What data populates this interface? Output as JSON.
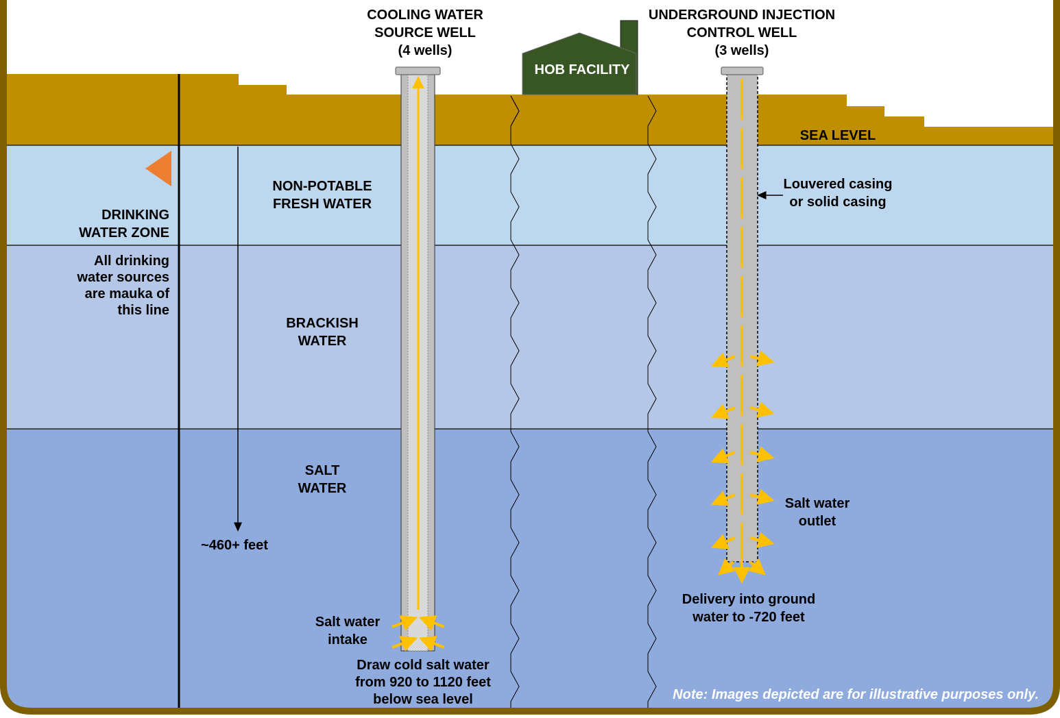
{
  "cooling_well": {
    "title": [
      "COOLING WATER",
      "SOURCE WELL"
    ],
    "count": "(4 wells)",
    "intake": [
      "Salt water",
      "intake"
    ],
    "depth_note": [
      "Draw cold salt water",
      "from 920 to 1120 feet",
      "below sea level"
    ]
  },
  "injection_well": {
    "title": [
      "UNDERGROUND INJECTION",
      "CONTROL WELL"
    ],
    "count": "(3 wells)",
    "casing": [
      "Louvered casing",
      "or solid casing"
    ],
    "outlet": [
      "Salt water",
      "outlet"
    ],
    "delivery": [
      "Delivery into ground",
      "water to -720 feet"
    ]
  },
  "facility": "HOB FACILITY",
  "sea_level": "SEA LEVEL",
  "zones": {
    "fresh": [
      "NON-POTABLE",
      "FRESH WATER"
    ],
    "brackish": [
      "BRACKISH",
      "WATER"
    ],
    "salt": [
      "SALT",
      "WATER"
    ]
  },
  "drinking_zone": [
    "DRINKING",
    "WATER ZONE"
  ],
  "drinking_note": [
    "All drinking",
    "water sources",
    "are mauka of",
    "this line"
  ],
  "depth_label": "~460+ feet",
  "note": "Note: Images depicted are for illustrative purposes only."
}
